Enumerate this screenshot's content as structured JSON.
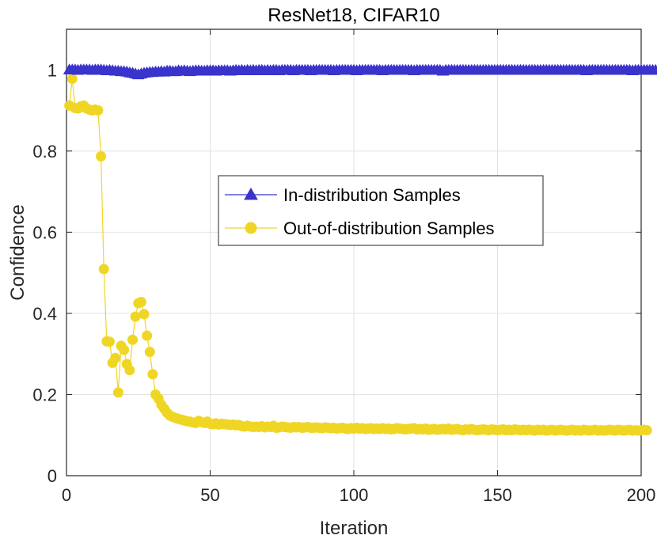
{
  "chart_data": {
    "type": "line",
    "title": "ResNet18, CIFAR10",
    "xlabel": "Iteration",
    "ylabel": "Confidence",
    "xlim": [
      0,
      200
    ],
    "ylim": [
      0,
      1.1
    ],
    "xticks": [
      0,
      50,
      100,
      150,
      200
    ],
    "yticks": [
      0,
      0.2,
      0.4,
      0.6,
      0.8,
      1
    ],
    "ytick_labels": [
      "0",
      "0.2",
      "0.4",
      "0.6",
      "0.8",
      "1"
    ],
    "grid": true,
    "legend_position": "center-right",
    "series": [
      {
        "name": "In-distribution Samples",
        "color": "#3a33cc",
        "marker": "triangle",
        "x_start": 1,
        "x_step": 1,
        "values": [
          1.0,
          1.0,
          1.0,
          0.999,
          1.0,
          1.0,
          1.0,
          1.0,
          0.999,
          1.0,
          1.0,
          1.0,
          0.999,
          0.998,
          0.999,
          0.998,
          0.997,
          0.997,
          0.996,
          0.996,
          0.995,
          0.993,
          0.992,
          0.99,
          0.988,
          0.99,
          0.992,
          0.993,
          0.994,
          0.994,
          0.995,
          0.995,
          0.996,
          0.995,
          0.997,
          0.997,
          0.996,
          0.996,
          0.998,
          0.997,
          0.998,
          0.997,
          0.996,
          0.997,
          0.998,
          0.998,
          0.997,
          0.997,
          0.998,
          0.998,
          0.998,
          0.997,
          0.998,
          0.998,
          0.998,
          0.998,
          0.997,
          0.998,
          0.999,
          0.998,
          0.999,
          0.998,
          0.999,
          0.998,
          0.999,
          0.998,
          0.999,
          0.999,
          0.998,
          0.999,
          0.998,
          0.999,
          0.999,
          0.998,
          0.999,
          0.999,
          0.999,
          0.999,
          0.998,
          0.999,
          0.999,
          0.999,
          0.999,
          0.999,
          0.998,
          0.999,
          0.999,
          0.999,
          0.999,
          0.999,
          0.999,
          0.999,
          0.998,
          0.999,
          0.999,
          0.999,
          0.999,
          0.999,
          0.999,
          0.999,
          0.998,
          0.999,
          0.999,
          0.999,
          0.999,
          0.999,
          0.999,
          0.999,
          0.999,
          0.998,
          0.999,
          0.999,
          0.999,
          0.999,
          0.999,
          0.999,
          0.999,
          0.999,
          0.999,
          0.999,
          0.998,
          0.999,
          0.999,
          0.999,
          0.999,
          0.999,
          0.999,
          0.999,
          0.999,
          0.999,
          0.997,
          0.999,
          0.999,
          0.999,
          0.999,
          0.999,
          0.999,
          0.999,
          0.999,
          0.999,
          0.999,
          0.999,
          0.999,
          0.999,
          0.999,
          0.999,
          0.999,
          0.999,
          0.999,
          0.999,
          0.999,
          0.999,
          0.999,
          0.999,
          0.999,
          0.999,
          0.999,
          0.999,
          0.999,
          0.999,
          0.999,
          0.999,
          0.999,
          0.999,
          0.999,
          0.999,
          0.999,
          0.999,
          0.999,
          0.999,
          0.999,
          0.999,
          0.999,
          0.999,
          0.999,
          0.999,
          0.999,
          0.999,
          0.999,
          0.999,
          0.998,
          0.999,
          0.999,
          0.999,
          0.999,
          0.999,
          0.999,
          0.999,
          0.999,
          0.999,
          0.999,
          0.999,
          0.999,
          0.999,
          0.999,
          0.999,
          0.998,
          0.999,
          0.999,
          0.999,
          0.999,
          0.999,
          0.999,
          0.999,
          0.999,
          0.999,
          0.999,
          0.999,
          0.999,
          0.999
        ]
      },
      {
        "name": "Out-of-distribution Samples",
        "color": "#f0d624",
        "marker": "circle",
        "x_start": 1,
        "x_step": 1,
        "values": [
          0.912,
          0.978,
          0.906,
          0.905,
          0.91,
          0.912,
          0.905,
          0.902,
          0.9,
          0.902,
          0.9,
          0.787,
          0.509,
          0.331,
          0.33,
          0.278,
          0.29,
          0.205,
          0.32,
          0.31,
          0.275,
          0.26,
          0.335,
          0.392,
          0.425,
          0.428,
          0.398,
          0.345,
          0.305,
          0.25,
          0.2,
          0.19,
          0.175,
          0.165,
          0.155,
          0.148,
          0.145,
          0.142,
          0.14,
          0.138,
          0.136,
          0.134,
          0.133,
          0.131,
          0.13,
          0.135,
          0.132,
          0.13,
          0.133,
          0.128,
          0.127,
          0.129,
          0.126,
          0.128,
          0.127,
          0.126,
          0.125,
          0.126,
          0.124,
          0.125,
          0.122,
          0.121,
          0.123,
          0.121,
          0.12,
          0.121,
          0.12,
          0.122,
          0.119,
          0.121,
          0.12,
          0.123,
          0.118,
          0.119,
          0.121,
          0.12,
          0.119,
          0.118,
          0.12,
          0.119,
          0.12,
          0.118,
          0.119,
          0.12,
          0.118,
          0.118,
          0.119,
          0.118,
          0.117,
          0.119,
          0.118,
          0.117,
          0.118,
          0.116,
          0.117,
          0.118,
          0.116,
          0.115,
          0.117,
          0.116,
          0.118,
          0.116,
          0.117,
          0.115,
          0.116,
          0.117,
          0.115,
          0.116,
          0.115,
          0.117,
          0.115,
          0.116,
          0.114,
          0.115,
          0.117,
          0.116,
          0.115,
          0.114,
          0.115,
          0.116,
          0.117,
          0.114,
          0.115,
          0.114,
          0.116,
          0.113,
          0.114,
          0.115,
          0.113,
          0.114,
          0.115,
          0.114,
          0.116,
          0.113,
          0.114,
          0.115,
          0.113,
          0.112,
          0.114,
          0.113,
          0.115,
          0.113,
          0.112,
          0.113,
          0.114,
          0.113,
          0.112,
          0.114,
          0.113,
          0.112,
          0.113,
          0.114,
          0.112,
          0.113,
          0.112,
          0.114,
          0.113,
          0.112,
          0.113,
          0.112,
          0.113,
          0.112,
          0.111,
          0.113,
          0.112,
          0.113,
          0.111,
          0.112,
          0.113,
          0.111,
          0.112,
          0.113,
          0.112,
          0.111,
          0.112,
          0.113,
          0.111,
          0.112,
          0.111,
          0.113,
          0.112,
          0.111,
          0.112,
          0.113,
          0.111,
          0.112,
          0.111,
          0.112,
          0.113,
          0.112,
          0.111,
          0.113,
          0.112,
          0.111,
          0.112,
          0.113,
          0.111,
          0.112,
          0.111,
          0.112,
          0.113,
          0.112
        ]
      }
    ]
  }
}
